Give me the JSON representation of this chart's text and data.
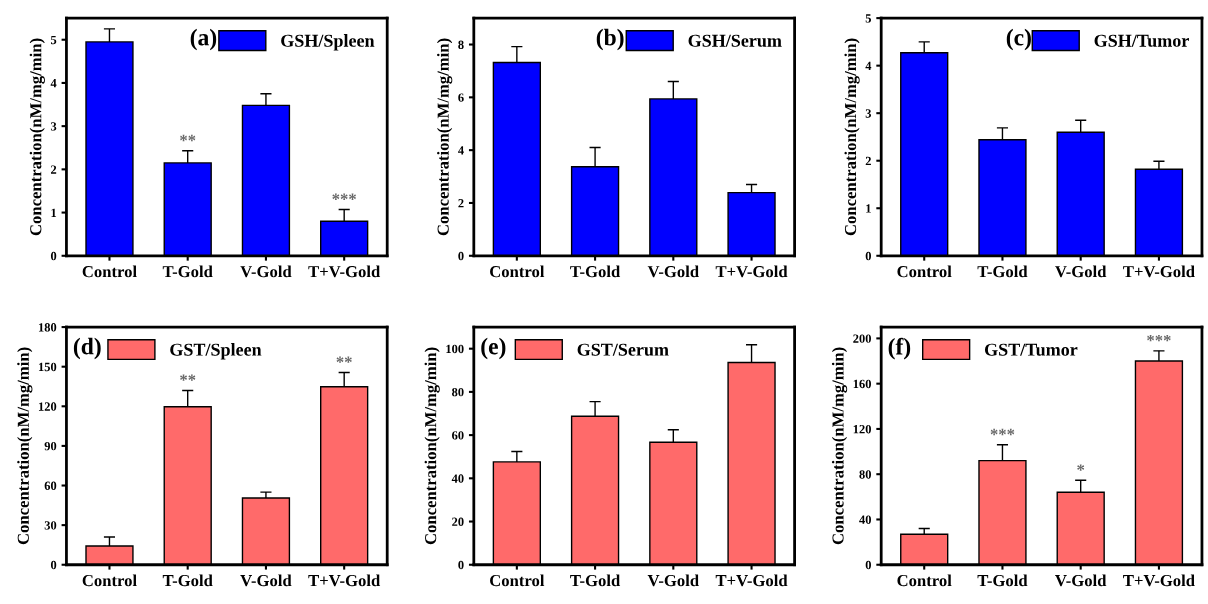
{
  "chart_data": [
    {
      "type": "bar",
      "categories": [
        "Control",
        "T-Gold",
        "V-Gold",
        "T+V-Gold"
      ],
      "ylabel": "Concentration(nM/mg/min)",
      "ylim": [
        0,
        5.5
      ],
      "yticks": [
        0,
        1,
        2,
        3,
        4,
        5
      ],
      "legend": "top right",
      "series": [
        {
          "name": "GSH/Spleen",
          "color": "#0000ff",
          "values": [
            4.95,
            2.15,
            3.48,
            0.8
          ],
          "errors": [
            0.3,
            0.28,
            0.27,
            0.27
          ]
        }
      ],
      "annotations": [
        "(a)",
        {
          "text": "**",
          "x": "T-Gold",
          "y": 2.43
        },
        {
          "text": "***",
          "x": "T+V-Gold",
          "y": 1.07
        }
      ]
    },
    {
      "type": "bar",
      "categories": [
        "Control",
        "T-Gold",
        "V-Gold",
        "T+V-Gold"
      ],
      "ylabel": "Concentration(nM/mg/min)",
      "ylim": [
        0,
        9
      ],
      "yticks": [
        0,
        2,
        4,
        6,
        8
      ],
      "legend": "top right",
      "series": [
        {
          "name": "GSH/Serum",
          "color": "#0000ff",
          "values": [
            7.32,
            3.37,
            5.94,
            2.39
          ],
          "errors": [
            0.6,
            0.73,
            0.66,
            0.31
          ]
        }
      ],
      "annotations": [
        "(b)"
      ]
    },
    {
      "type": "bar",
      "categories": [
        "Control",
        "T-Gold",
        "V-Gold",
        "T+V-Gold"
      ],
      "ylabel": "Concentration(nM/mg/min)",
      "ylim": [
        0,
        5
      ],
      "yticks": [
        0,
        1,
        2,
        3,
        4,
        5
      ],
      "legend": "top right",
      "series": [
        {
          "name": "GSH/Tumor",
          "color": "#0000ff",
          "values": [
            4.27,
            2.44,
            2.6,
            1.82
          ],
          "errors": [
            0.23,
            0.25,
            0.25,
            0.17
          ]
        }
      ],
      "annotations": [
        "(c)"
      ]
    },
    {
      "type": "bar",
      "categories": [
        "Control",
        "T-Gold",
        "V-Gold",
        "T+V-Gold"
      ],
      "ylabel": "Concentration(nM/mg/min)",
      "ylim": [
        0,
        180
      ],
      "yticks": [
        0,
        30,
        60,
        90,
        120,
        150,
        180
      ],
      "legend": "top left",
      "series": [
        {
          "name": "GST/Spleen",
          "color": "#ff6a6a",
          "values": [
            14.2,
            119.7,
            50.6,
            134.8
          ],
          "errors": [
            6.8,
            12.3,
            4.4,
            10.8
          ]
        }
      ],
      "annotations": [
        "(d)",
        {
          "text": "**",
          "x": "T-Gold",
          "y": 132
        },
        {
          "text": "**",
          "x": "T+V-Gold",
          "y": 145.6
        }
      ]
    },
    {
      "type": "bar",
      "categories": [
        "Control",
        "T-Gold",
        "V-Gold",
        "T+V-Gold"
      ],
      "ylabel": "Concentration(nM/mg/min)",
      "ylim": [
        0,
        110
      ],
      "yticks": [
        0,
        20,
        40,
        60,
        80,
        100
      ],
      "legend": "top left",
      "series": [
        {
          "name": "GST/Serum",
          "color": "#ff6a6a",
          "values": [
            47.6,
            68.7,
            56.7,
            93.6
          ],
          "errors": [
            4.8,
            6.8,
            5.8,
            8.2
          ]
        }
      ],
      "annotations": [
        "(e)"
      ]
    },
    {
      "type": "bar",
      "categories": [
        "Control",
        "T-Gold",
        "V-Gold",
        "T+V-Gold"
      ],
      "ylabel": "Concentration(nM/mg/min)",
      "ylim": [
        0,
        210
      ],
      "yticks": [
        0,
        40,
        80,
        120,
        160,
        200
      ],
      "legend": "top left",
      "series": [
        {
          "name": "GST/Tumor",
          "color": "#ff6a6a",
          "values": [
            27,
            92,
            64,
            180
          ],
          "errors": [
            5,
            14,
            10.6,
            9
          ]
        }
      ],
      "annotations": [
        "(f)",
        {
          "text": "***",
          "x": "T-Gold",
          "y": 106
        },
        {
          "text": "*",
          "x": "V-Gold",
          "y": 74.6
        },
        {
          "text": "***",
          "x": "T+V-Gold",
          "y": 189
        }
      ]
    }
  ]
}
